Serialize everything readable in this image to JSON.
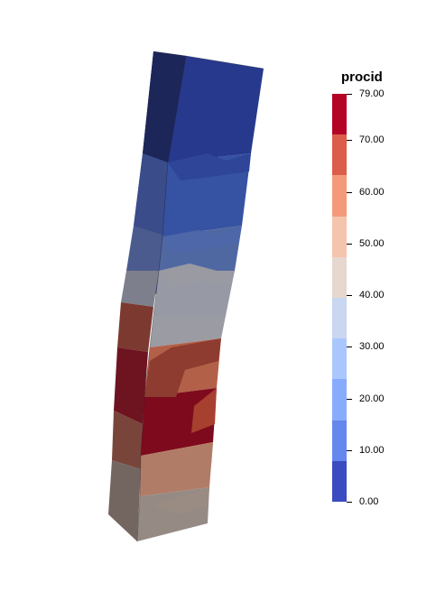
{
  "legend": {
    "title": "procid",
    "range": [
      0,
      79
    ],
    "ticks": [
      "79.00",
      "70.00",
      "60.00",
      "50.00",
      "40.00",
      "30.00",
      "20.00",
      "10.00",
      "0.00"
    ],
    "tick_values": [
      79,
      70,
      60,
      50,
      40,
      30,
      20,
      10,
      0
    ],
    "bins": 9,
    "colors_top_to_bottom": [
      "#b40426",
      "#dc5d4a",
      "#f49a7b",
      "#f5c4ac",
      "#e6d7cf",
      "#c9d7f0",
      "#aac7fd",
      "#88abfd",
      "#6687ed",
      "#3b4cc0"
    ]
  }
}
